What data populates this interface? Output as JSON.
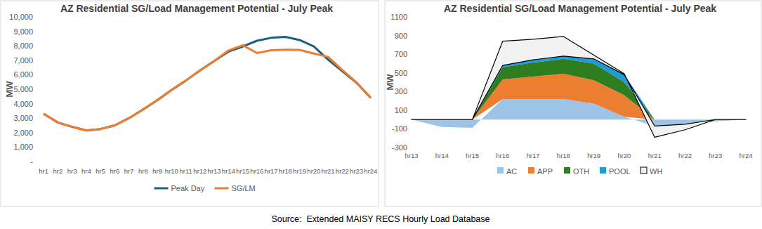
{
  "chart_data": [
    {
      "type": "line",
      "title": "AZ Residential SG/Load Management Potential - July Peak",
      "y_label": "MW",
      "categories": [
        "hr1",
        "hr2",
        "hr3",
        "hr4",
        "hr5",
        "hr6",
        "hr7",
        "hr8",
        "hr9",
        "hr10",
        "hr11",
        "hr12",
        "hr13",
        "hr14",
        "hr15",
        "hr16",
        "hr17",
        "hr18",
        "hr19",
        "hr20",
        "hr21",
        "hr22",
        "hr23",
        "hr24"
      ],
      "series": [
        {
          "name": "Peak Day",
          "color": "#1f5f7a",
          "values": [
            3300,
            2700,
            2400,
            2150,
            2250,
            2500,
            3000,
            3600,
            4250,
            4950,
            5600,
            6300,
            6950,
            7600,
            7950,
            8350,
            8550,
            8620,
            8400,
            7950,
            7050,
            6250,
            5450,
            4400
          ]
        },
        {
          "name": "SG/LM",
          "color": "#ed7d31",
          "values": [
            3300,
            2700,
            2400,
            2150,
            2250,
            2500,
            3000,
            3600,
            4250,
            4950,
            5600,
            6300,
            6950,
            7680,
            8040,
            7500,
            7690,
            7730,
            7720,
            7460,
            7240,
            6330,
            5470,
            4400
          ]
        }
      ],
      "ylim": [
        0,
        10000
      ],
      "yticks": [
        {
          "value": 0,
          "label": "-"
        },
        {
          "value": 1000,
          "label": "1,000"
        },
        {
          "value": 2000,
          "label": "2,000"
        },
        {
          "value": 3000,
          "label": "3,000"
        },
        {
          "value": 4000,
          "label": "4,000"
        },
        {
          "value": 5000,
          "label": "5,000"
        },
        {
          "value": 6000,
          "label": "6,000"
        },
        {
          "value": 7000,
          "label": "7,000"
        },
        {
          "value": 8000,
          "label": "8,000"
        },
        {
          "value": 9000,
          "label": "9,000"
        },
        {
          "value": 10000,
          "label": "10,000"
        }
      ],
      "grid": false,
      "legend": "bottom"
    },
    {
      "type": "area",
      "title": "AZ Residential SG/Load Management Potential - July Peak",
      "y_label": "MW",
      "categories": [
        "hr13",
        "hr14",
        "hr15",
        "hr16",
        "hr17",
        "hr18",
        "hr19",
        "hr20",
        "hr21",
        "hr22",
        "hr23",
        "hr24"
      ],
      "series": [
        {
          "name": "AC",
          "color": "#9dc3e6",
          "values": [
            0,
            -80,
            -90,
            220,
            220,
            220,
            170,
            30,
            -70,
            -50,
            -20,
            0
          ]
        },
        {
          "name": "APP",
          "color": "#ed7d31",
          "values": [
            0,
            0,
            0,
            210,
            240,
            270,
            250,
            230,
            0,
            0,
            0,
            0
          ]
        },
        {
          "name": "OTH",
          "color": "#2e7d1e",
          "values": [
            0,
            0,
            0,
            130,
            150,
            160,
            180,
            140,
            0,
            0,
            0,
            0
          ]
        },
        {
          "name": "POOL",
          "color": "#1f9ad6",
          "values": [
            0,
            0,
            0,
            20,
            30,
            30,
            50,
            80,
            0,
            0,
            0,
            0
          ]
        },
        {
          "name": "WH",
          "color": "#f2f2f2",
          "values": [
            0,
            0,
            0,
            260,
            220,
            210,
            40,
            10,
            -120,
            -60,
            0,
            0
          ]
        }
      ],
      "ylim": [
        -300,
        1100
      ],
      "yticks": [
        -300,
        -100,
        100,
        300,
        500,
        700,
        900,
        1100
      ],
      "stacked": true,
      "grid": false,
      "legend": "bottom"
    }
  ],
  "source": "Source:  Extended MAISY RECS Hourly Load Database"
}
